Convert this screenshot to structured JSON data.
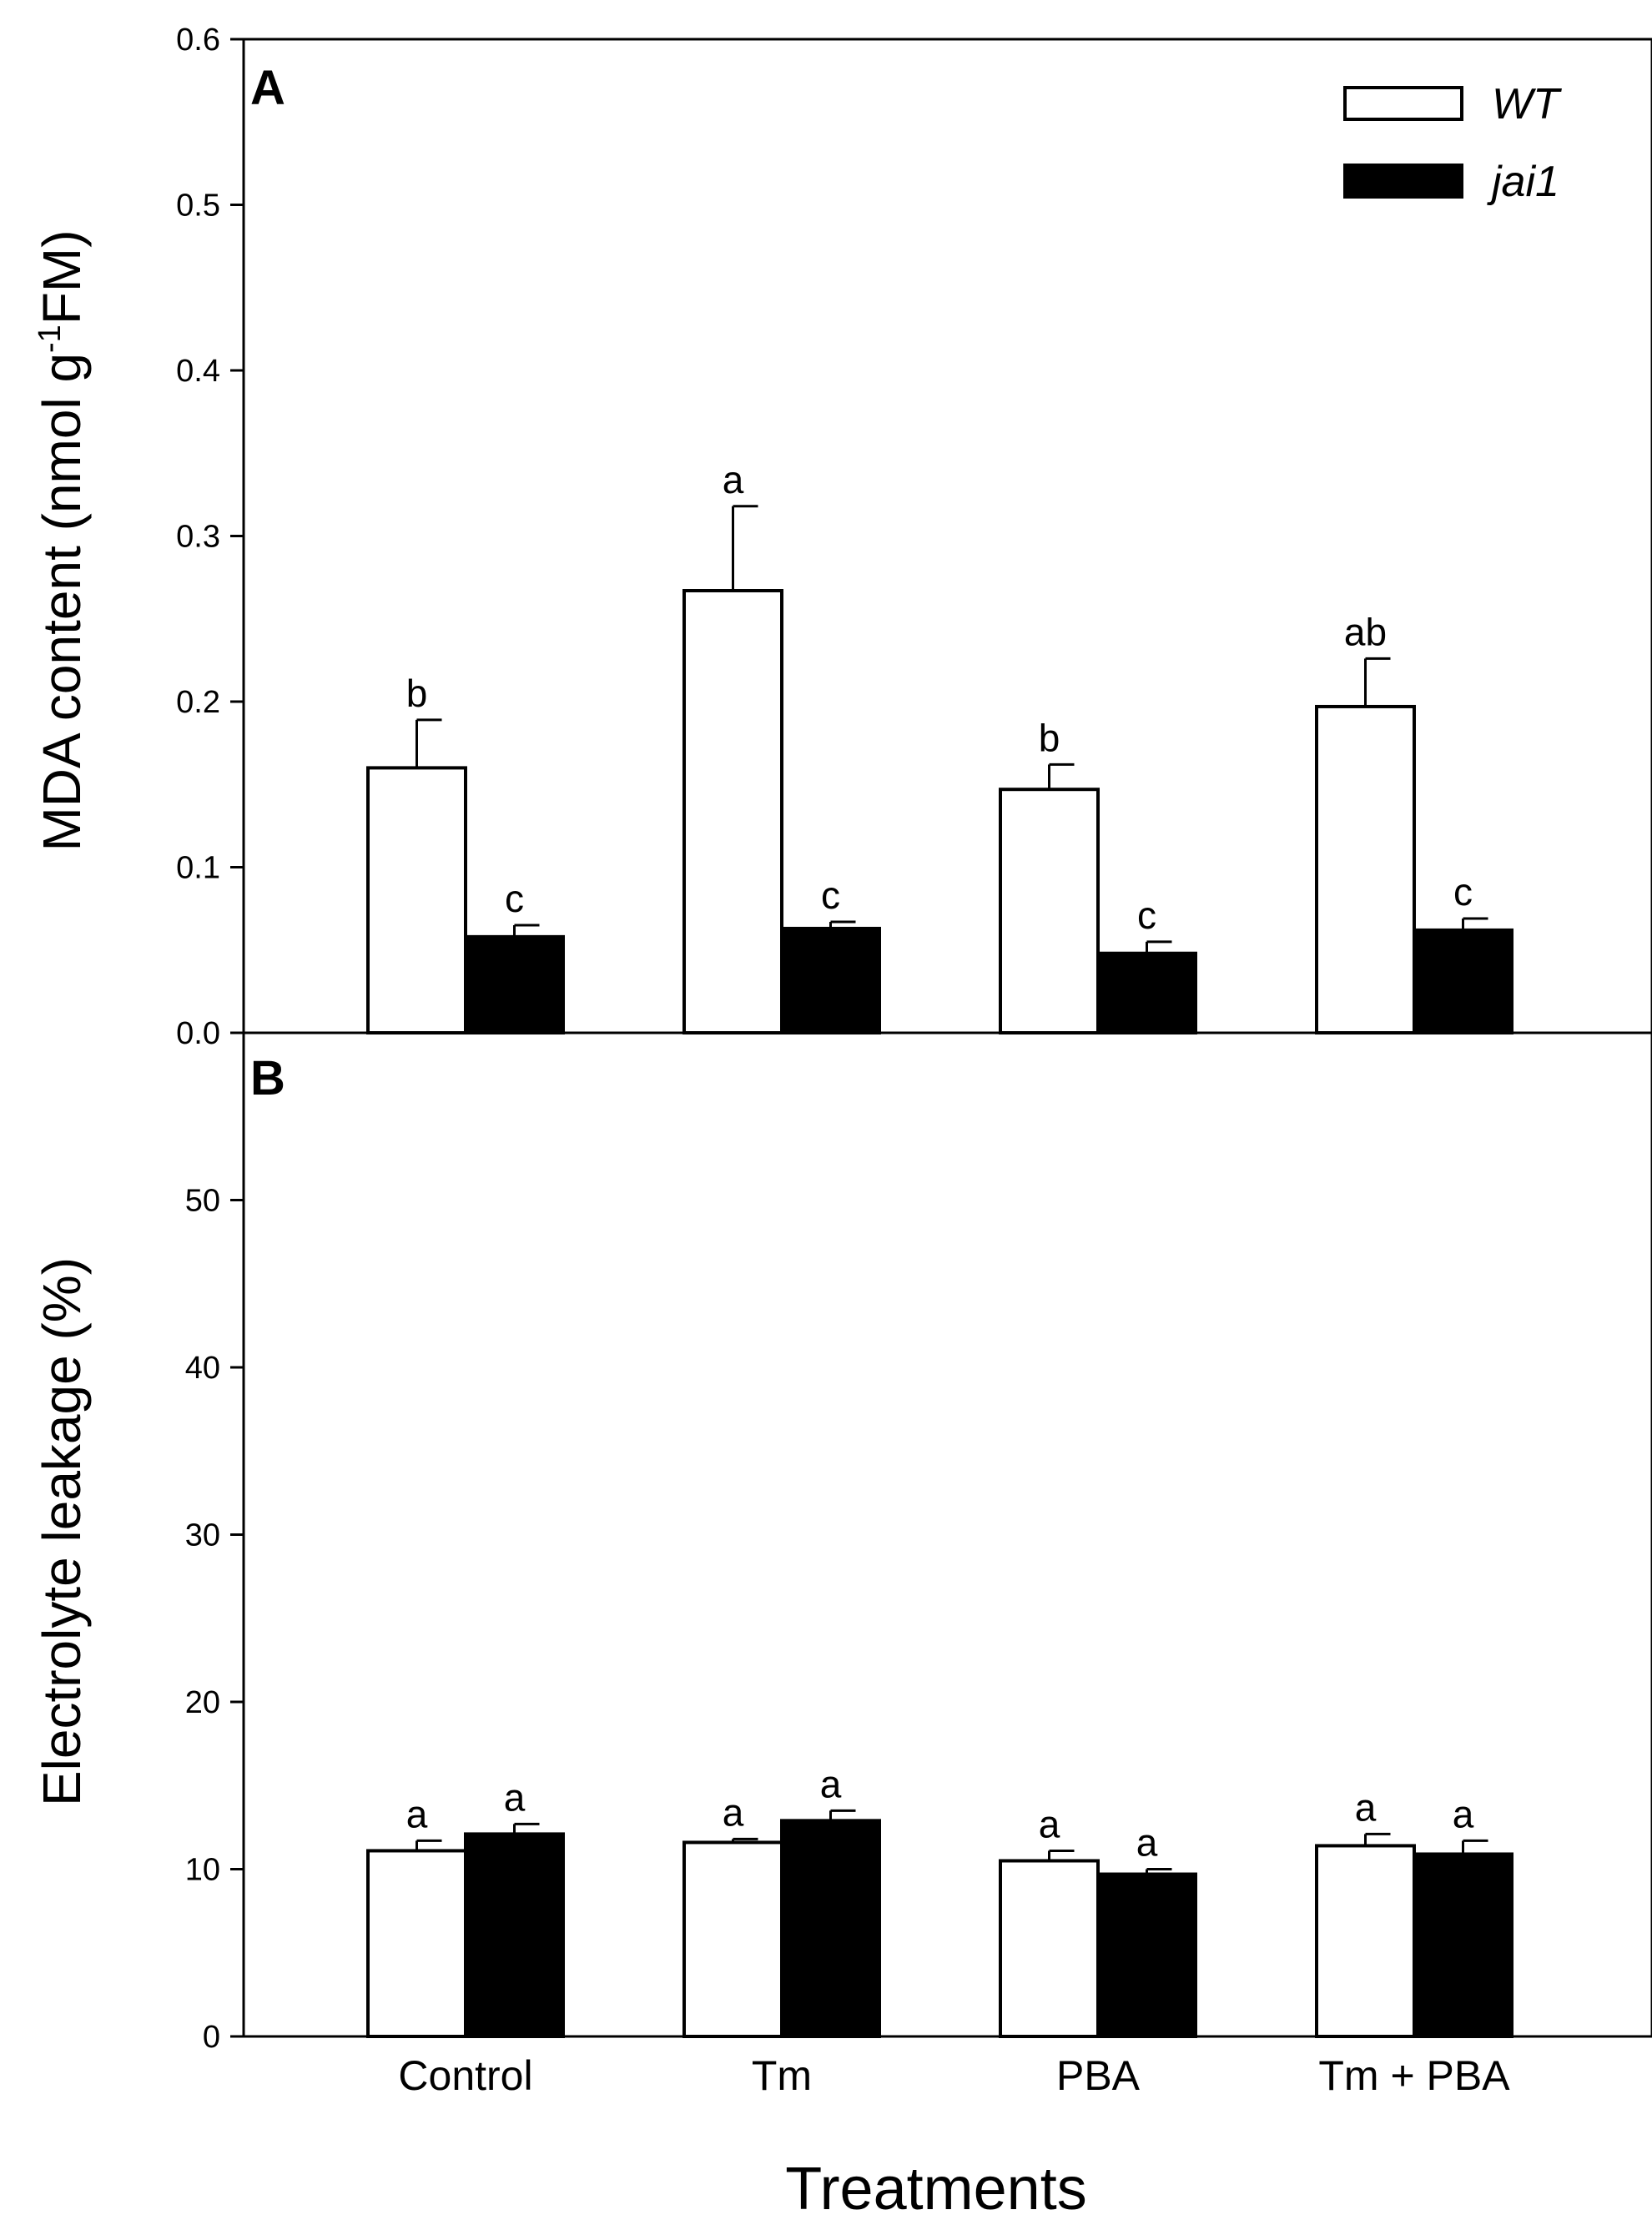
{
  "colors": {
    "wt": "#ffffff",
    "jai1": "#000000",
    "axis": "#000000"
  },
  "legend": {
    "wt_label": "WT",
    "jai1_label": "jai1",
    "placement": "top-right of panel A"
  },
  "xaxis": {
    "label": "Treatments"
  },
  "chart_data": [
    {
      "panel": "A",
      "type": "bar",
      "categories": [
        "Control",
        "Tm",
        "PBA",
        "Tm + PBA"
      ],
      "ylabel_parts": [
        "MDA content (nmol g",
        "-1",
        "FM)"
      ],
      "ylim": [
        0,
        0.6
      ],
      "yticks": [
        0.0,
        0.1,
        0.2,
        0.3,
        0.4,
        0.5,
        0.6
      ],
      "ytick_labels": [
        "0.0",
        "0.1",
        "0.2",
        "0.3",
        "0.4",
        "0.5",
        "0.6"
      ],
      "series": [
        {
          "name": "WT",
          "values": [
            0.16,
            0.267,
            0.147,
            0.197
          ],
          "errors": [
            0.029,
            0.051,
            0.015,
            0.029
          ],
          "letters": [
            "b",
            "a",
            "b",
            "ab"
          ]
        },
        {
          "name": "jai1",
          "values": [
            0.058,
            0.063,
            0.048,
            0.062
          ],
          "errors": [
            0.007,
            0.004,
            0.007,
            0.007
          ],
          "letters": [
            "c",
            "c",
            "c",
            "c"
          ]
        }
      ]
    },
    {
      "panel": "B",
      "type": "bar",
      "categories": [
        "Control",
        "Tm",
        "PBA",
        "Tm + PBA"
      ],
      "ylabel": "Electrolyte leakage (%)",
      "ylim": [
        0,
        60
      ],
      "yticks": [
        0,
        10,
        20,
        30,
        40,
        50
      ],
      "ytick_labels": [
        "0",
        "10",
        "20",
        "30",
        "40",
        "50"
      ],
      "series": [
        {
          "name": "WT",
          "values": [
            11.1,
            11.6,
            10.5,
            11.4
          ],
          "errors": [
            0.6,
            0.2,
            0.6,
            0.7
          ],
          "letters": [
            "a",
            "a",
            "a",
            "a"
          ]
        },
        {
          "name": "jai1",
          "values": [
            12.1,
            12.9,
            9.7,
            10.9
          ],
          "errors": [
            0.6,
            0.6,
            0.3,
            0.8
          ],
          "letters": [
            "a",
            "a",
            "a",
            "a"
          ]
        }
      ]
    }
  ]
}
